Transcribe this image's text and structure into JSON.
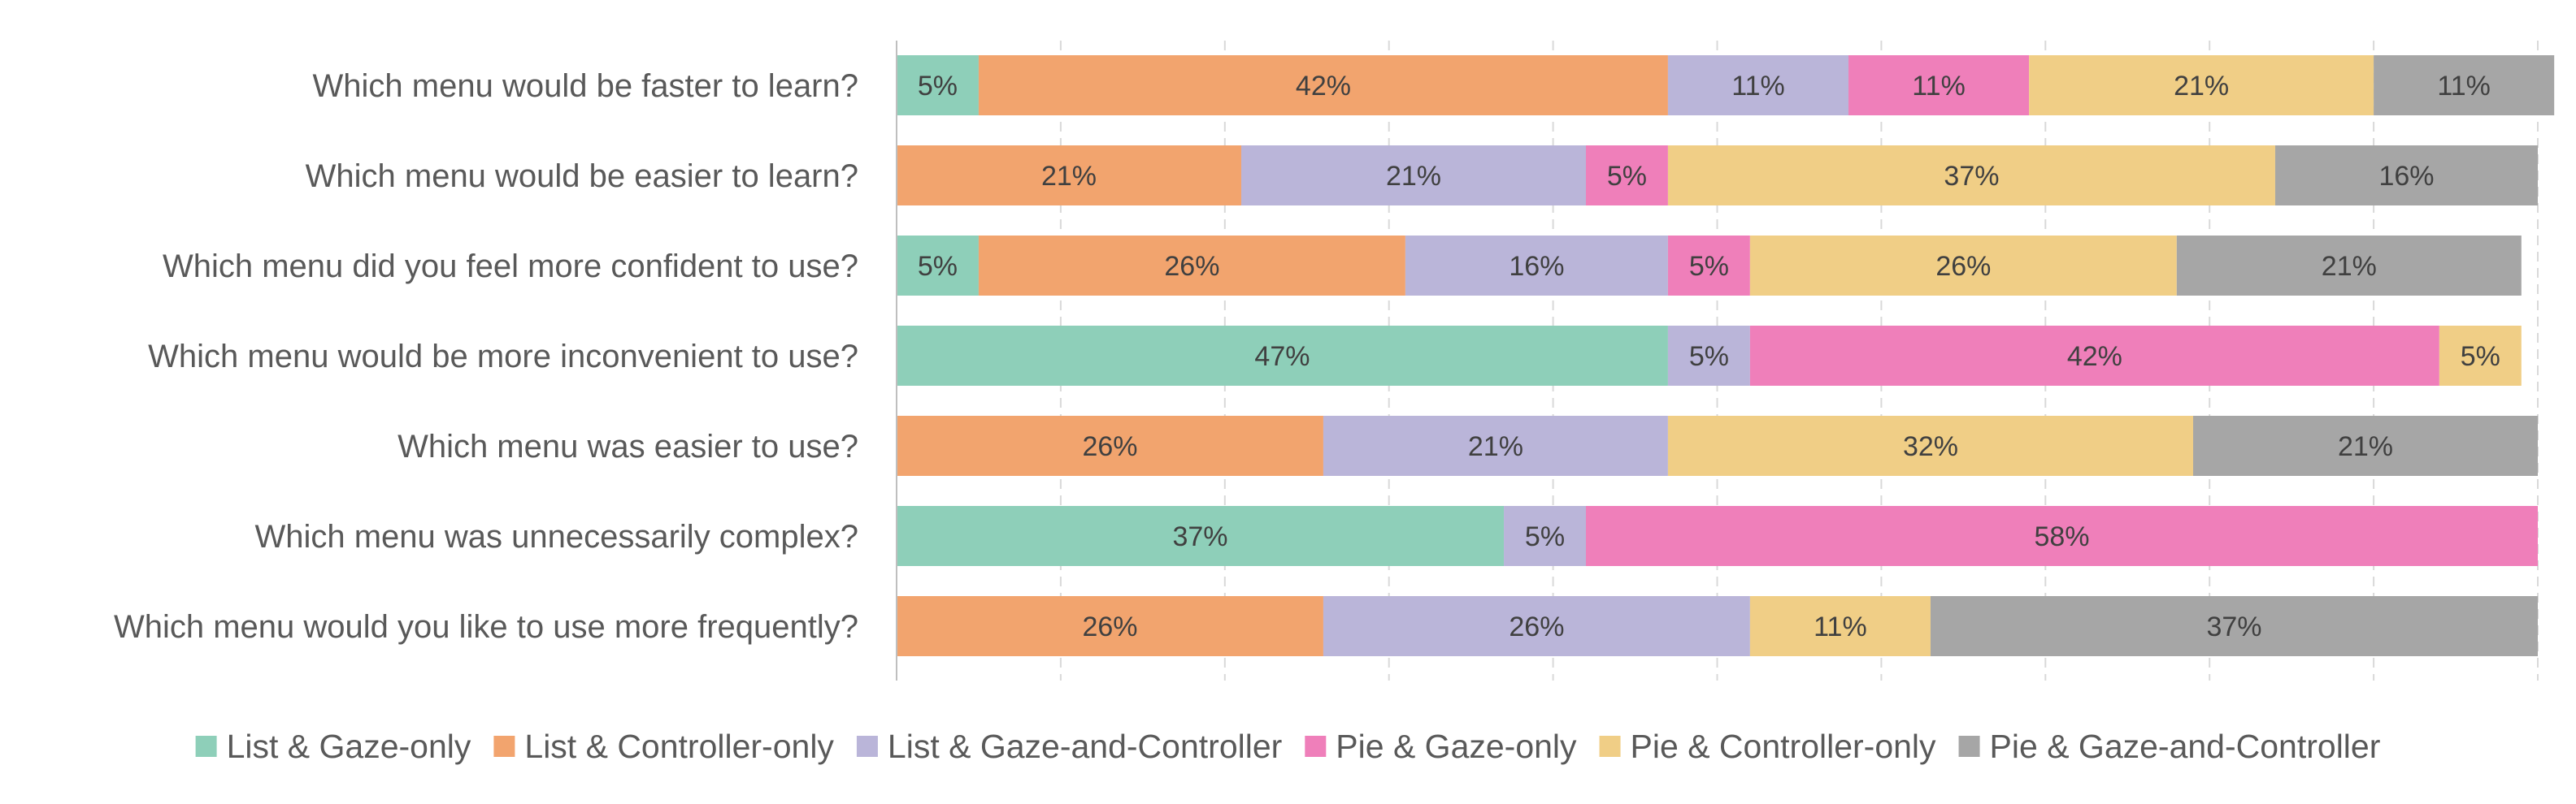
{
  "chart_data": {
    "type": "bar",
    "orientation": "horizontal",
    "stacked": true,
    "normalized_percent": true,
    "categories": [
      "Which menu would be faster to learn?",
      "Which menu would be easier to learn?",
      "Which menu did you feel more confident to use?",
      "Which menu would be more inconvenient to use?",
      "Which menu was easier to use?",
      "Which menu was unnecessarily complex?",
      "Which menu would you like to use more frequently?"
    ],
    "series": [
      {
        "name": "List & Gaze-only",
        "color": "#8ecfb9",
        "values": [
          5,
          0,
          5,
          47,
          0,
          37,
          0
        ]
      },
      {
        "name": "List & Controller-only",
        "color": "#f2a46e",
        "values": [
          42,
          21,
          26,
          0,
          26,
          0,
          26
        ]
      },
      {
        "name": "List & Gaze-and-Controller",
        "color": "#bab5d9",
        "values": [
          11,
          21,
          16,
          5,
          21,
          5,
          26
        ]
      },
      {
        "name": "Pie & Gaze-only",
        "color": "#ef7fba",
        "values": [
          11,
          5,
          5,
          42,
          0,
          58,
          0
        ]
      },
      {
        "name": "Pie & Controller-only",
        "color": "#f0ce86",
        "values": [
          21,
          37,
          26,
          5,
          32,
          0,
          11
        ]
      },
      {
        "name": "Pie & Gaze-and-Controller",
        "color": "#a6a6a6",
        "values": [
          11,
          16,
          21,
          0,
          21,
          0,
          37
        ]
      }
    ],
    "xlim": [
      0,
      100
    ],
    "grid": "vertical-dashed",
    "legend_position": "bottom",
    "title": "",
    "xlabel": "",
    "ylabel": ""
  }
}
